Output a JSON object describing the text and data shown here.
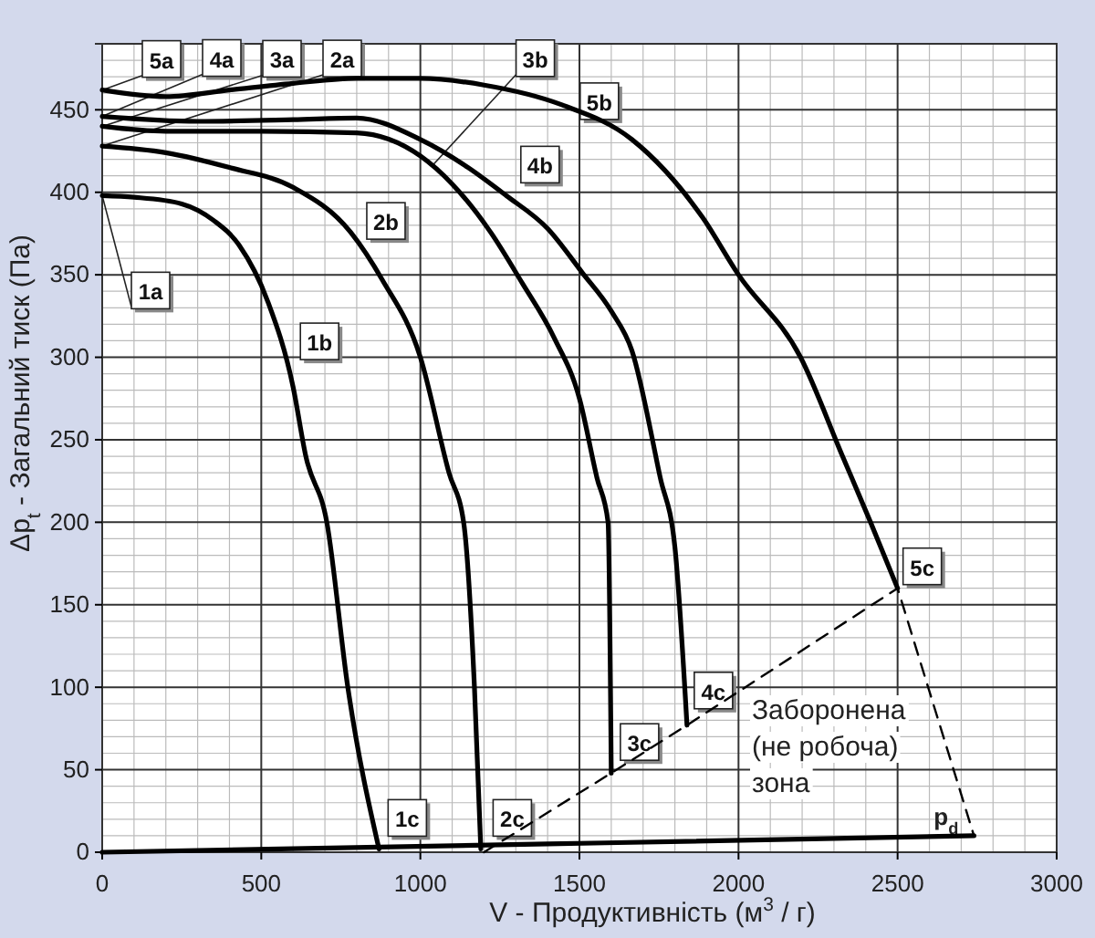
{
  "chart_data": {
    "type": "line",
    "xlabel": "V - Продуктивність  (м$^{3}$ / г)",
    "ylabel": "Δp$_{t}$ - Загальний тиск (Па)",
    "xlim": [
      0,
      3000
    ],
    "ylim": [
      0,
      490
    ],
    "xticks": [
      0,
      500,
      1000,
      1500,
      2000,
      2500,
      3000
    ],
    "yticks": [
      0,
      50,
      100,
      150,
      200,
      250,
      300,
      350,
      400,
      450
    ],
    "grid": true,
    "marker": "none",
    "line_style": "solid",
    "series": [
      {
        "color": "#000000",
        "x": [
          0,
          100,
          250,
          350,
          430,
          520,
          600,
          640,
          706,
          772,
          870
        ],
        "values": [
          398,
          397,
          393,
          383,
          368,
          334,
          282,
          240,
          200,
          100,
          2
        ]
      },
      {
        "color": "#000000",
        "x": [
          0,
          200,
          400,
          600,
          780,
          880,
          1000,
          1090,
          1136,
          1170,
          1190
        ],
        "values": [
          428,
          424,
          415,
          403,
          376,
          347,
          300,
          230,
          200,
          100,
          2
        ]
      },
      {
        "color": "#000000",
        "x": [
          0,
          200,
          500,
          800,
          1000,
          1100,
          1220,
          1320,
          1420,
          1500,
          1555,
          1590,
          1600
        ],
        "values": [
          440,
          437,
          437,
          436,
          422,
          405,
          376,
          345,
          312,
          275,
          227,
          200,
          48
        ]
      },
      {
        "color": "#000000",
        "x": [
          0,
          300,
          600,
          800,
          1000,
          1150,
          1270,
          1400,
          1510,
          1600,
          1665,
          1754,
          1800,
          1838
        ],
        "values": [
          446,
          443,
          444,
          445,
          432,
          415,
          398,
          378,
          351,
          328,
          304,
          227,
          185,
          77
        ]
      },
      {
        "color": "#000000",
        "x": [
          0,
          200,
          400,
          600,
          800,
          1000,
          1200,
          1445,
          1665,
          1886,
          2000,
          2195,
          2327,
          2415,
          2500
        ],
        "values": [
          462,
          458,
          462,
          466,
          469,
          469,
          465,
          453,
          432,
          385,
          350,
          300,
          240,
          200,
          160
        ]
      },
      {
        "color": "#000000",
        "x": [
          0,
          1400,
          2740
        ],
        "values": [
          0,
          5,
          10
        ]
      },
      {
        "color": "#000000",
        "line_style": "dashed",
        "x": [
          1200,
          1600,
          1838,
          2500,
          2740
        ],
        "values": [
          0,
          48,
          77,
          160,
          10
        ]
      }
    ],
    "annotations": [
      {
        "text": "1a",
        "x": 0,
        "y": 398
      },
      {
        "text": "2a",
        "x": 0,
        "y": 428
      },
      {
        "text": "3a",
        "x": 0,
        "y": 440
      },
      {
        "text": "4a",
        "x": 0,
        "y": 446
      },
      {
        "text": "5a",
        "x": 0,
        "y": 462
      },
      {
        "text": "1b",
        "x": 600,
        "y": 282
      },
      {
        "text": "2b",
        "x": 780,
        "y": 376
      },
      {
        "text": "3b",
        "x": 1037,
        "y": 416
      },
      {
        "text": "4b",
        "x": 1270,
        "y": 398
      },
      {
        "text": "5b",
        "x": 1445,
        "y": 453
      },
      {
        "text": "1c",
        "x": 870,
        "y": 2
      },
      {
        "text": "2c",
        "x": 1200,
        "y": 2
      },
      {
        "text": "3c",
        "x": 1600,
        "y": 48
      },
      {
        "text": "4c",
        "x": 1838,
        "y": 77
      },
      {
        "text": "5c",
        "x": 2500,
        "y": 160
      },
      "Заборонена (не робоча) зона",
      {
        "text": "p$_{d}$",
        "x": 2740,
        "y": 10
      }
    ]
  }
}
